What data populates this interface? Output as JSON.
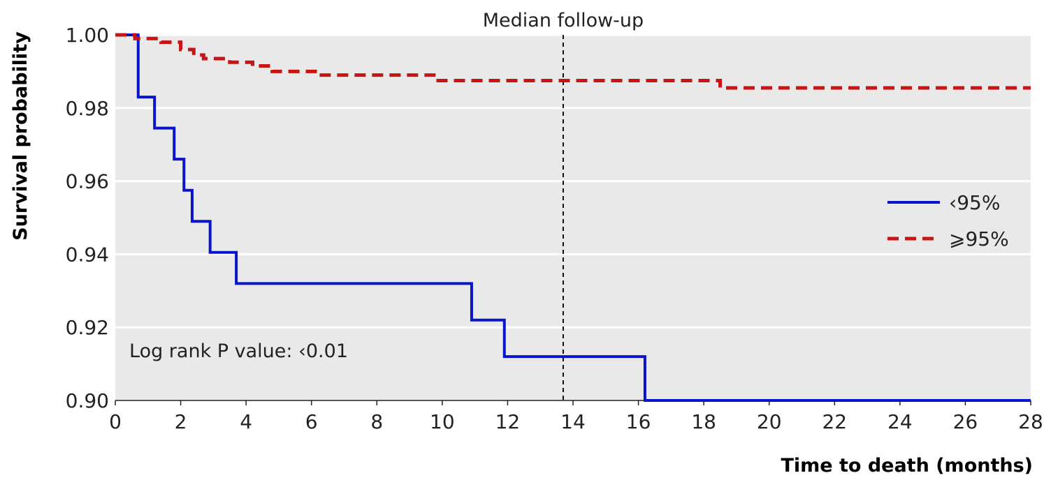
{
  "chart_data": {
    "type": "line",
    "xlabel": "Time to death (months)",
    "ylabel": "Survival probability",
    "xlim": [
      0,
      28
    ],
    "ylim": [
      0.9,
      1.0
    ],
    "x_ticks": [
      "0",
      "2",
      "4",
      "6",
      "8",
      "10",
      "12",
      "14",
      "16",
      "18",
      "20",
      "22",
      "24",
      "26",
      "28"
    ],
    "y_ticks": [
      "0.90",
      "0.92",
      "0.94",
      "0.96",
      "0.98",
      "1.00"
    ],
    "grid": "horizontal",
    "legend_position": "right",
    "background": "#e9e9e9",
    "series": [
      {
        "name": "‹95%",
        "style": "solid",
        "color": "#0a14c8",
        "steps": [
          [
            0,
            1.0
          ],
          [
            0.7,
            0.983
          ],
          [
            1.2,
            0.9745
          ],
          [
            1.8,
            0.966
          ],
          [
            2.1,
            0.9575
          ],
          [
            2.35,
            0.949
          ],
          [
            2.9,
            0.9405
          ],
          [
            3.7,
            0.932
          ],
          [
            10.9,
            0.922
          ],
          [
            11.9,
            0.912
          ],
          [
            16.2,
            0.9
          ],
          [
            28,
            0.9
          ]
        ]
      },
      {
        "name": "⩾95%",
        "style": "dashed",
        "color": "#c81414",
        "steps": [
          [
            0,
            1.0
          ],
          [
            0.6,
            0.999
          ],
          [
            1.4,
            0.998
          ],
          [
            2.0,
            0.996
          ],
          [
            2.4,
            0.9945
          ],
          [
            2.7,
            0.9935
          ],
          [
            3.5,
            0.9925
          ],
          [
            4.2,
            0.9915
          ],
          [
            4.8,
            0.99
          ],
          [
            6.2,
            0.989
          ],
          [
            9.8,
            0.9875
          ],
          [
            18.5,
            0.9855
          ],
          [
            28,
            0.9855
          ]
        ]
      }
    ],
    "annotations": {
      "median_followup_x": 13.7,
      "median_followup_label": "Median follow-up",
      "log_rank": "Log rank P value: ‹0.01"
    }
  }
}
